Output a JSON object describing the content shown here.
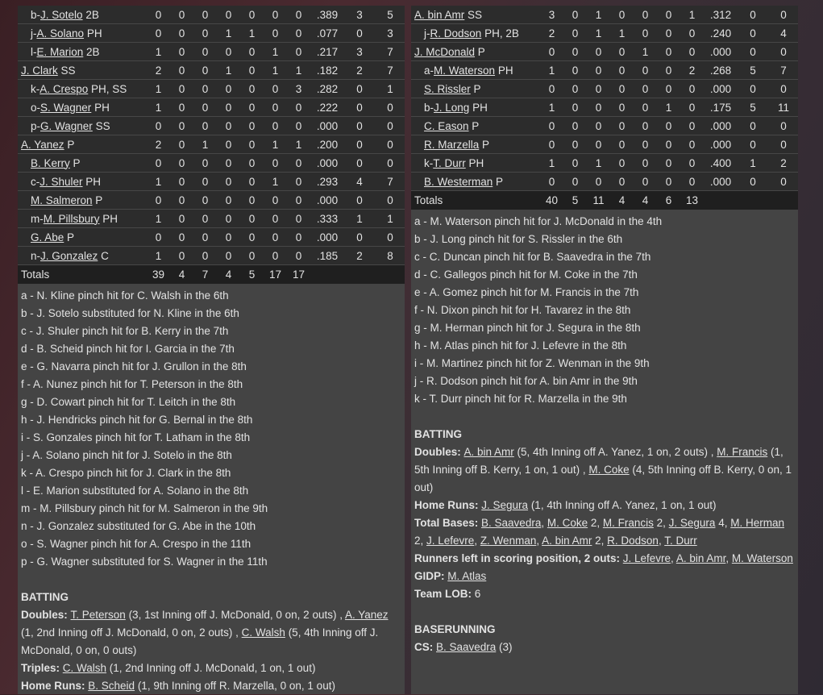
{
  "left": {
    "rows": [
      {
        "prefix": "b-",
        "name": "J. Sotelo",
        "pos": "2B",
        "indent": true,
        "stats": [
          "0",
          "0",
          "0",
          "0",
          "0",
          "0",
          "0",
          ".389",
          "3",
          "5"
        ]
      },
      {
        "prefix": "j-",
        "name": "A. Solano",
        "pos": "PH",
        "indent": true,
        "stats": [
          "0",
          "0",
          "0",
          "1",
          "1",
          "0",
          "0",
          ".077",
          "0",
          "3"
        ]
      },
      {
        "prefix": "l-",
        "name": "E. Marion",
        "pos": "2B",
        "indent": true,
        "stats": [
          "1",
          "0",
          "0",
          "0",
          "0",
          "1",
          "0",
          ".217",
          "3",
          "7"
        ]
      },
      {
        "prefix": "",
        "name": "J. Clark",
        "pos": "SS",
        "indent": false,
        "stats": [
          "2",
          "0",
          "0",
          "1",
          "0",
          "1",
          "1",
          ".182",
          "2",
          "7"
        ]
      },
      {
        "prefix": "k-",
        "name": "A. Crespo",
        "pos": "PH, SS",
        "indent": true,
        "stats": [
          "1",
          "0",
          "0",
          "0",
          "0",
          "0",
          "3",
          ".282",
          "0",
          "1"
        ]
      },
      {
        "prefix": "o-",
        "name": "S. Wagner",
        "pos": "PH",
        "indent": true,
        "stats": [
          "1",
          "0",
          "0",
          "0",
          "0",
          "0",
          "0",
          ".222",
          "0",
          "0"
        ]
      },
      {
        "prefix": "p-",
        "name": "G. Wagner",
        "pos": "SS",
        "indent": true,
        "stats": [
          "0",
          "0",
          "0",
          "0",
          "0",
          "0",
          "0",
          ".000",
          "0",
          "0"
        ]
      },
      {
        "prefix": "",
        "name": "A. Yanez",
        "pos": "P",
        "indent": false,
        "stats": [
          "2",
          "0",
          "1",
          "0",
          "0",
          "1",
          "1",
          ".200",
          "0",
          "0"
        ]
      },
      {
        "prefix": "",
        "name": "B. Kerry",
        "pos": "P",
        "indent": true,
        "stats": [
          "0",
          "0",
          "0",
          "0",
          "0",
          "0",
          "0",
          ".000",
          "0",
          "0"
        ]
      },
      {
        "prefix": "c-",
        "name": "J. Shuler",
        "pos": "PH",
        "indent": true,
        "stats": [
          "1",
          "0",
          "0",
          "0",
          "0",
          "1",
          "0",
          ".293",
          "4",
          "7"
        ]
      },
      {
        "prefix": "",
        "name": "M. Salmeron",
        "pos": "P",
        "indent": true,
        "stats": [
          "0",
          "0",
          "0",
          "0",
          "0",
          "0",
          "0",
          ".000",
          "0",
          "0"
        ]
      },
      {
        "prefix": "m-",
        "name": "M. Pillsbury",
        "pos": "PH",
        "indent": true,
        "stats": [
          "1",
          "0",
          "0",
          "0",
          "0",
          "0",
          "0",
          ".333",
          "1",
          "1"
        ]
      },
      {
        "prefix": "",
        "name": "G. Abe",
        "pos": "P",
        "indent": true,
        "stats": [
          "0",
          "0",
          "0",
          "0",
          "0",
          "0",
          "0",
          ".000",
          "0",
          "0"
        ]
      },
      {
        "prefix": "n-",
        "name": "J. Gonzalez",
        "pos": "C",
        "indent": true,
        "stats": [
          "1",
          "0",
          "0",
          "0",
          "0",
          "0",
          "0",
          ".185",
          "2",
          "8"
        ]
      }
    ],
    "totals": {
      "label": "Totals",
      "stats": [
        "39",
        "4",
        "7",
        "4",
        "5",
        "17",
        "17"
      ]
    },
    "notes": [
      "a - N. Kline pinch hit for C. Walsh in the 6th",
      "b - J. Sotelo substituted for N. Kline in the 6th",
      "c - J. Shuler pinch hit for B. Kerry in the 7th",
      "d - B. Scheid pinch hit for I. Garcia in the 7th",
      "e - G. Navarra pinch hit for J. Grullon in the 8th",
      "f - A. Nunez pinch hit for T. Peterson in the 8th",
      "g - D. Cowart pinch hit for T. Leitch in the 8th",
      "h - J. Hendricks pinch hit for G. Bernal in the 8th",
      "i - S. Gonzales pinch hit for T. Latham in the 8th",
      "j - A. Solano pinch hit for J. Sotelo in the 8th",
      "k - A. Crespo pinch hit for J. Clark in the 8th",
      "l - E. Marion substituted for A. Solano in the 8th",
      "m - M. Pillsbury pinch hit for M. Salmeron in the 9th",
      "n - J. Gonzalez substituted for G. Abe in the 10th",
      "o - S. Wagner pinch hit for A. Crespo in the 11th",
      "p - G. Wagner substituted for S. Wagner in the 11th"
    ],
    "sections": [
      {
        "heading": "BATTING",
        "lines": [
          [
            {
              "b": "Doubles: "
            },
            {
              "l": "T. Peterson"
            },
            {
              "t": " (3, 1st Inning off J. McDonald, 0 on, 2 outs) , "
            },
            {
              "l": "A. Yanez"
            },
            {
              "t": " (1, 2nd Inning off J. McDonald, 0 on, 2 outs) , "
            },
            {
              "l": "C. Walsh"
            },
            {
              "t": " (5, 4th Inning off J. McDonald, 0 on, 0 outs)"
            }
          ],
          [
            {
              "b": "Triples: "
            },
            {
              "l": "C. Walsh"
            },
            {
              "t": " (1, 2nd Inning off J. McDonald, 1 on, 1 out)"
            }
          ],
          [
            {
              "b": "Home Runs: "
            },
            {
              "l": "B. Scheid"
            },
            {
              "t": " (1, 9th Inning off R. Marzella, 0 on, 1 out)"
            }
          ]
        ]
      }
    ]
  },
  "right": {
    "rows": [
      {
        "prefix": "",
        "name": "A. bin Amr",
        "pos": "SS",
        "indent": false,
        "stats": [
          "3",
          "0",
          "1",
          "0",
          "0",
          "0",
          "1",
          ".312",
          "0",
          "0"
        ]
      },
      {
        "prefix": "j-",
        "name": "R. Dodson",
        "pos": "PH, 2B",
        "indent": true,
        "stats": [
          "2",
          "0",
          "1",
          "1",
          "0",
          "0",
          "0",
          ".240",
          "0",
          "4"
        ]
      },
      {
        "prefix": "",
        "name": "J. McDonald",
        "pos": "P",
        "indent": false,
        "stats": [
          "0",
          "0",
          "0",
          "0",
          "1",
          "0",
          "0",
          ".000",
          "0",
          "0"
        ]
      },
      {
        "prefix": "a-",
        "name": "M. Waterson",
        "pos": "PH",
        "indent": true,
        "stats": [
          "1",
          "0",
          "0",
          "0",
          "0",
          "0",
          "2",
          ".268",
          "5",
          "7"
        ]
      },
      {
        "prefix": "",
        "name": "S. Rissler",
        "pos": "P",
        "indent": true,
        "stats": [
          "0",
          "0",
          "0",
          "0",
          "0",
          "0",
          "0",
          ".000",
          "0",
          "0"
        ]
      },
      {
        "prefix": "b-",
        "name": "J. Long",
        "pos": "PH",
        "indent": true,
        "stats": [
          "1",
          "0",
          "0",
          "0",
          "0",
          "1",
          "0",
          ".175",
          "5",
          "11"
        ]
      },
      {
        "prefix": "",
        "name": "C. Eason",
        "pos": "P",
        "indent": true,
        "stats": [
          "0",
          "0",
          "0",
          "0",
          "0",
          "0",
          "0",
          ".000",
          "0",
          "0"
        ]
      },
      {
        "prefix": "",
        "name": "R. Marzella",
        "pos": "P",
        "indent": true,
        "stats": [
          "0",
          "0",
          "0",
          "0",
          "0",
          "0",
          "0",
          ".000",
          "0",
          "0"
        ]
      },
      {
        "prefix": "k-",
        "name": "T. Durr",
        "pos": "PH",
        "indent": true,
        "stats": [
          "1",
          "0",
          "1",
          "0",
          "0",
          "0",
          "0",
          ".400",
          "1",
          "2"
        ]
      },
      {
        "prefix": "",
        "name": "B. Westerman",
        "pos": "P",
        "indent": true,
        "stats": [
          "0",
          "0",
          "0",
          "0",
          "0",
          "0",
          "0",
          ".000",
          "0",
          "0"
        ]
      }
    ],
    "totals": {
      "label": "Totals",
      "stats": [
        "40",
        "5",
        "11",
        "4",
        "4",
        "6",
        "13"
      ]
    },
    "notes": [
      "a - M. Waterson pinch hit for J. McDonald in the 4th",
      "b - J. Long pinch hit for S. Rissler in the 6th",
      "c - C. Duncan pinch hit for B. Saavedra in the 7th",
      "d - C. Gallegos pinch hit for M. Coke in the 7th",
      "e - A. Gomez pinch hit for M. Francis in the 7th",
      "f - N. Dixon pinch hit for H. Tavarez in the 8th",
      "g - M. Herman pinch hit for J. Segura in the 8th",
      "h - M. Atlas pinch hit for J. Lefevre in the 8th",
      "i - M. Martinez pinch hit for Z. Wenman in the 9th",
      "j - R. Dodson pinch hit for A. bin Amr in the 9th",
      "k - T. Durr pinch hit for R. Marzella in the 9th"
    ],
    "sections": [
      {
        "heading": "BATTING",
        "lines": [
          [
            {
              "b": "Doubles: "
            },
            {
              "l": "A. bin Amr"
            },
            {
              "t": " (5, 4th Inning off A. Yanez, 1 on, 2 outs) , "
            },
            {
              "l": "M. Francis"
            },
            {
              "t": " (1, 5th Inning off B. Kerry, 1 on, 1 out) , "
            },
            {
              "l": "M. Coke"
            },
            {
              "t": " (4, 5th Inning off B. Kerry, 0 on, 1 out)"
            }
          ],
          [
            {
              "b": "Home Runs: "
            },
            {
              "l": "J. Segura"
            },
            {
              "t": " (1, 4th Inning off A. Yanez, 1 on, 1 out)"
            }
          ],
          [
            {
              "b": "Total Bases: "
            },
            {
              "l": "B. Saavedra"
            },
            {
              "t": ", "
            },
            {
              "l": "M. Coke"
            },
            {
              "t": " 2, "
            },
            {
              "l": "M. Francis"
            },
            {
              "t": " 2, "
            },
            {
              "l": "J. Segura"
            },
            {
              "t": " 4, "
            },
            {
              "l": "M. Herman"
            },
            {
              "t": " 2, "
            },
            {
              "l": "J. Lefevre"
            },
            {
              "t": ", "
            },
            {
              "l": "Z. Wenman"
            },
            {
              "t": ", "
            },
            {
              "l": "A. bin Amr"
            },
            {
              "t": " 2, "
            },
            {
              "l": "R. Dodson"
            },
            {
              "t": ", "
            },
            {
              "l": "T. Durr"
            }
          ],
          [
            {
              "b": "Runners left in scoring position, 2 outs: "
            },
            {
              "l": "J. Lefevre"
            },
            {
              "t": ", "
            },
            {
              "l": "A. bin Amr"
            },
            {
              "t": ", "
            },
            {
              "l": "M. Waterson"
            }
          ],
          [
            {
              "b": "GIDP: "
            },
            {
              "l": "M. Atlas"
            }
          ],
          [
            {
              "b": "Team LOB: "
            },
            {
              "t": "6"
            }
          ]
        ]
      },
      {
        "heading": "BASERUNNING",
        "lines": [
          [
            {
              "b": "CS: "
            },
            {
              "l": "B. Saavedra"
            },
            {
              "t": " (3)"
            }
          ]
        ]
      }
    ]
  }
}
